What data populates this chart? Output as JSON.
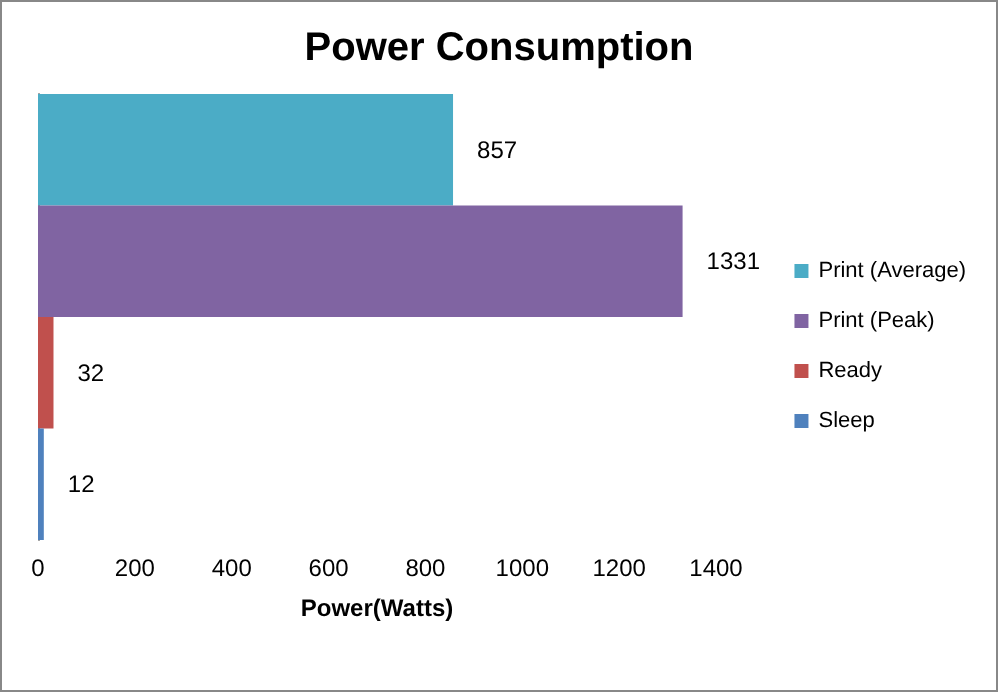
{
  "chart_data": {
    "type": "bar",
    "orientation": "horizontal",
    "title": "Power Consumption",
    "xlabel": "Power(Watts)",
    "categories": [
      null
    ],
    "series": [
      {
        "name": "Print (Average)",
        "color": "#4bacc6",
        "values": [
          857
        ]
      },
      {
        "name": "Print (Peak)",
        "color": "#8064a2",
        "values": [
          1331
        ]
      },
      {
        "name": "Ready",
        "color": "#c0504d",
        "values": [
          32
        ]
      },
      {
        "name": "Sleep",
        "color": "#4f81bd",
        "values": [
          12
        ]
      }
    ],
    "xlim": [
      0,
      1400
    ],
    "xticks": [
      0,
      200,
      400,
      600,
      800,
      1000,
      1200,
      1400
    ],
    "data_labels": true,
    "legend": "right",
    "grid": false
  }
}
